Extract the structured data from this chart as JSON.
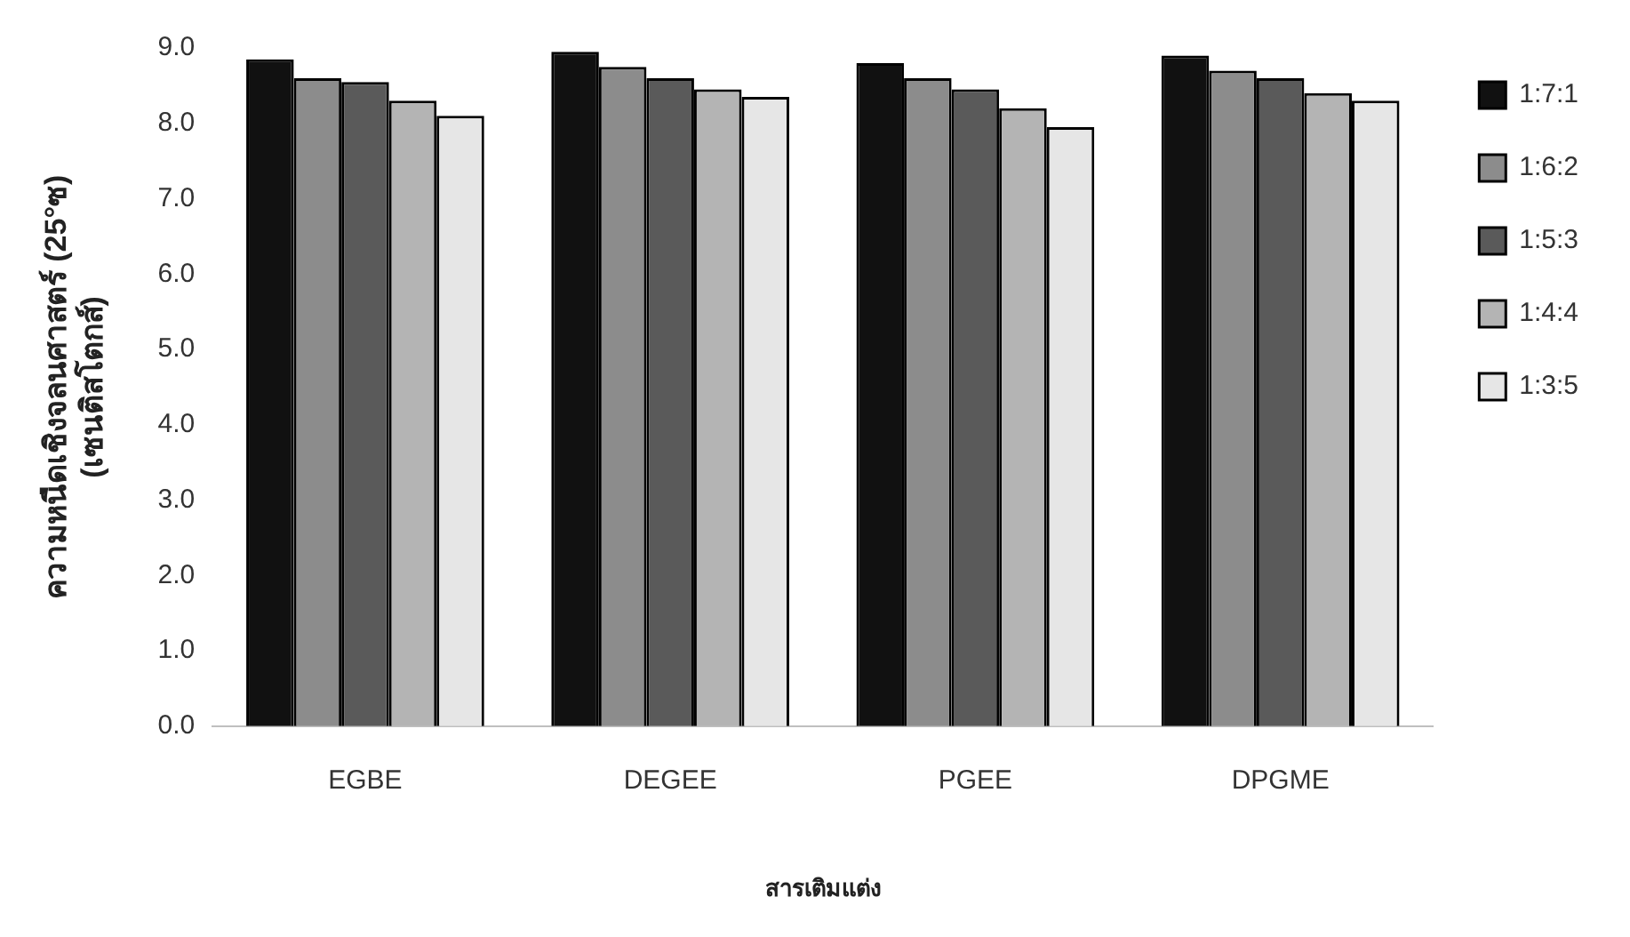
{
  "chart_data": {
    "type": "bar",
    "xlabel": "สารเติมแต่ง",
    "ylabel": "ความหนืดเชิงจลนศาสตร์ (25°ซ)\n(เซนติสโตกส์)",
    "categories": [
      "EGBE",
      "DEGEE",
      "PGEE",
      "DPGME"
    ],
    "series": [
      {
        "name": "1:7:1",
        "color": "#111111",
        "values": [
          8.85,
          8.95,
          8.8,
          8.9
        ]
      },
      {
        "name": "1:6:2",
        "color": "#8c8c8c",
        "values": [
          8.6,
          8.75,
          8.6,
          8.7
        ]
      },
      {
        "name": "1:5:3",
        "color": "#5a5a5a",
        "values": [
          8.55,
          8.6,
          8.45,
          8.6
        ]
      },
      {
        "name": "1:4:4",
        "color": "#b4b4b4",
        "values": [
          8.3,
          8.45,
          8.2,
          8.4
        ]
      },
      {
        "name": "1:3:5",
        "color": "#e6e6e6",
        "values": [
          8.1,
          8.35,
          7.95,
          8.3
        ]
      }
    ],
    "ylim": [
      0,
      9
    ],
    "yticks": [
      {
        "value": 0,
        "label": "0.0"
      },
      {
        "value": 1,
        "label": "1.0"
      },
      {
        "value": 2,
        "label": "2.0"
      },
      {
        "value": 3,
        "label": "3.0"
      },
      {
        "value": 4,
        "label": "4.0"
      },
      {
        "value": 5,
        "label": "5.0"
      },
      {
        "value": 6,
        "label": "6.0"
      },
      {
        "value": 7,
        "label": "7.0"
      },
      {
        "value": 8,
        "label": "8.0"
      },
      {
        "value": 9,
        "label": "9.0"
      }
    ],
    "grid": false,
    "legend": "right"
  }
}
